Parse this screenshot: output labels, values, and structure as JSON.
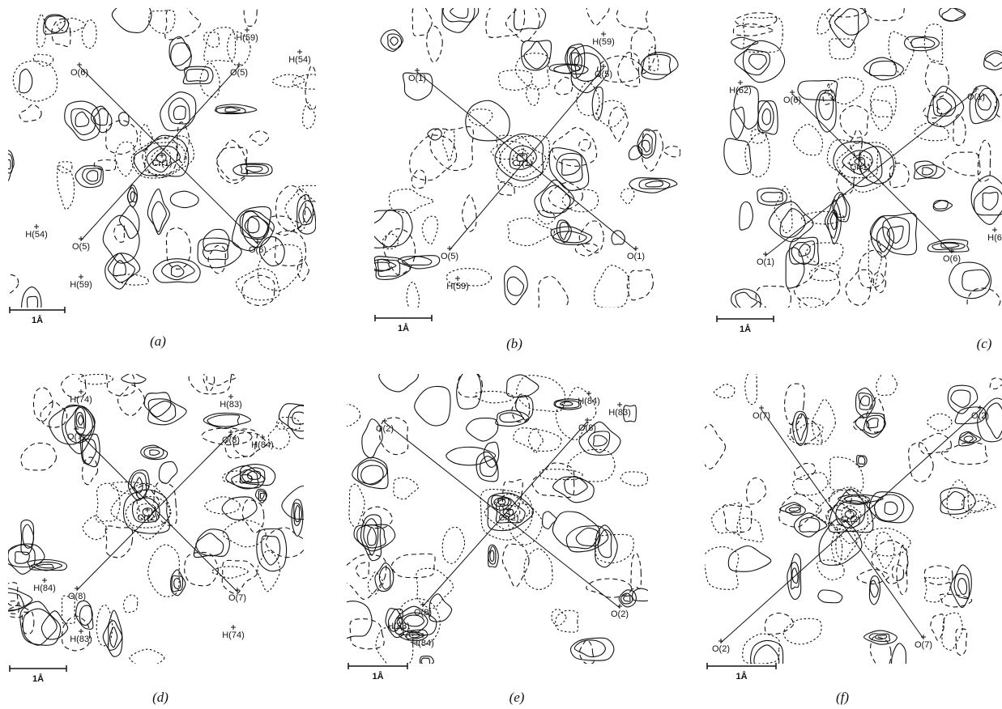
{
  "panels": [
    {
      "caption": "(a)",
      "scale": "1Å",
      "atoms": [
        "H(59)",
        "H(54)",
        "O(6)",
        "O(5)",
        "Cr(1)",
        "H(54)",
        "O(5)",
        "O(6)",
        "H(59)"
      ]
    },
    {
      "caption": "(b)",
      "scale": "1Å",
      "atoms": [
        "H(59)",
        "O(1)",
        "O(5)",
        "Cr(1)",
        "O(5)",
        "O(1)",
        "H(59)"
      ]
    },
    {
      "caption": "(c)",
      "scale": "1Å",
      "atoms": [
        "O(6)",
        "O(1)",
        "H(62)",
        "Cr(1)",
        "O(1)",
        "O(6)",
        "H(6"
      ]
    },
    {
      "caption": "(d)",
      "scale": "1Å",
      "atoms": [
        "H(74)",
        "H(83)",
        "O(7)",
        "O(8)",
        "H(84)",
        "Cr(2)",
        "H(84)",
        "O(8)",
        "O(7)",
        "H(83)",
        "H(74)"
      ]
    },
    {
      "caption": "(e)",
      "scale": "1Å",
      "atoms": [
        "H(84)",
        "O(2)",
        "O(8)",
        "H(83)",
        "Cr(2)",
        "O(8)",
        "H(83)",
        "H(84)",
        "O(2)"
      ]
    },
    {
      "caption": "(f)",
      "scale": "1Å",
      "atoms": [
        "O(7)",
        "O(2)",
        "Cr(2)",
        "O(2)",
        "O(7)"
      ]
    }
  ]
}
